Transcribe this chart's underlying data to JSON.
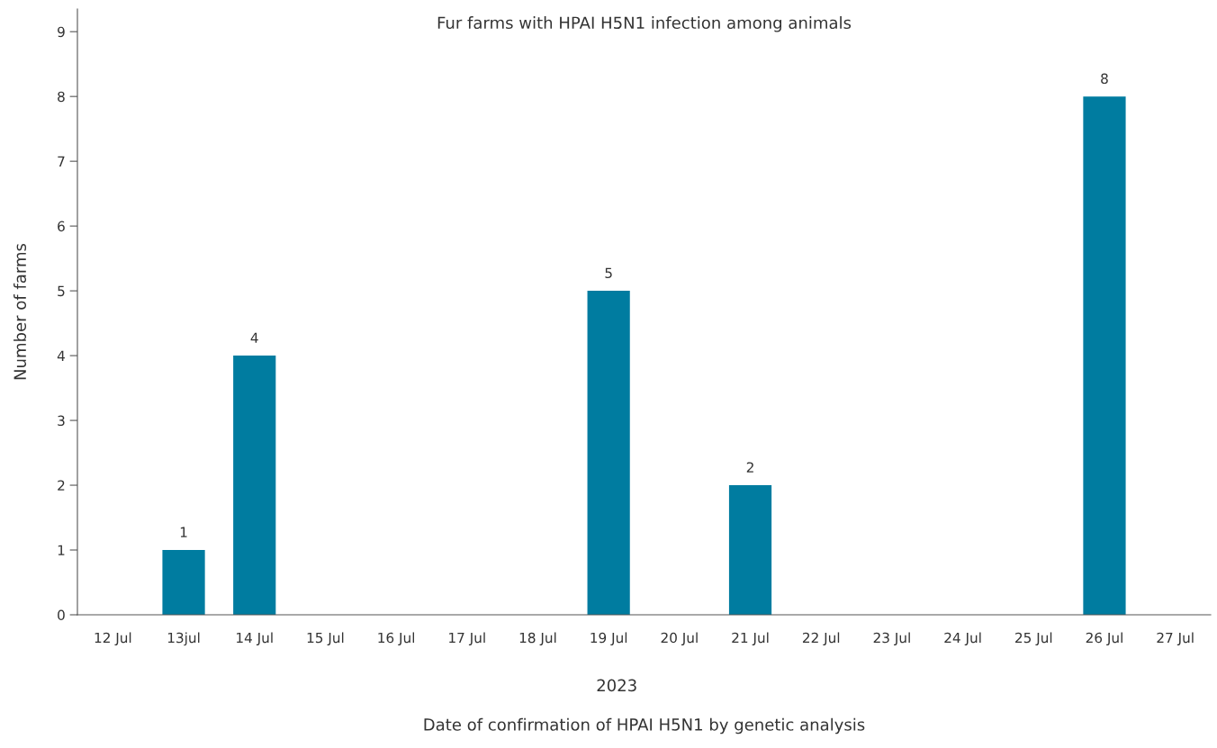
{
  "chart_data": {
    "type": "bar",
    "title": "Fur farms with HPAI H5N1 infection among animals",
    "ylabel": "Number of farms",
    "xlabel": "Date of confirmation of HPAI H5N1 by genetic analysis",
    "annotations": [
      "2023"
    ],
    "categories": [
      "12 Jul",
      "13jul",
      "14 Jul",
      "15 Jul",
      "16 Jul",
      "17 Jul",
      "18 Jul",
      "19 Jul",
      "20 Jul",
      "21 Jul",
      "22 Jul",
      "23 Jul",
      "24 Jul",
      "25 Jul",
      "26 Jul",
      "27 Jul"
    ],
    "values": [
      0,
      1,
      4,
      0,
      0,
      0,
      0,
      5,
      0,
      2,
      0,
      0,
      0,
      0,
      8,
      0
    ],
    "value_labels": [
      null,
      "1",
      "4",
      null,
      null,
      null,
      null,
      "5",
      null,
      "2",
      null,
      null,
      null,
      null,
      "8",
      null
    ],
    "color": "#007ca0",
    "ylim": [
      0,
      9.35
    ],
    "yticks": [
      0,
      1,
      2,
      3,
      4,
      5,
      6,
      7,
      8,
      9
    ],
    "grid": false,
    "legend": false
  }
}
